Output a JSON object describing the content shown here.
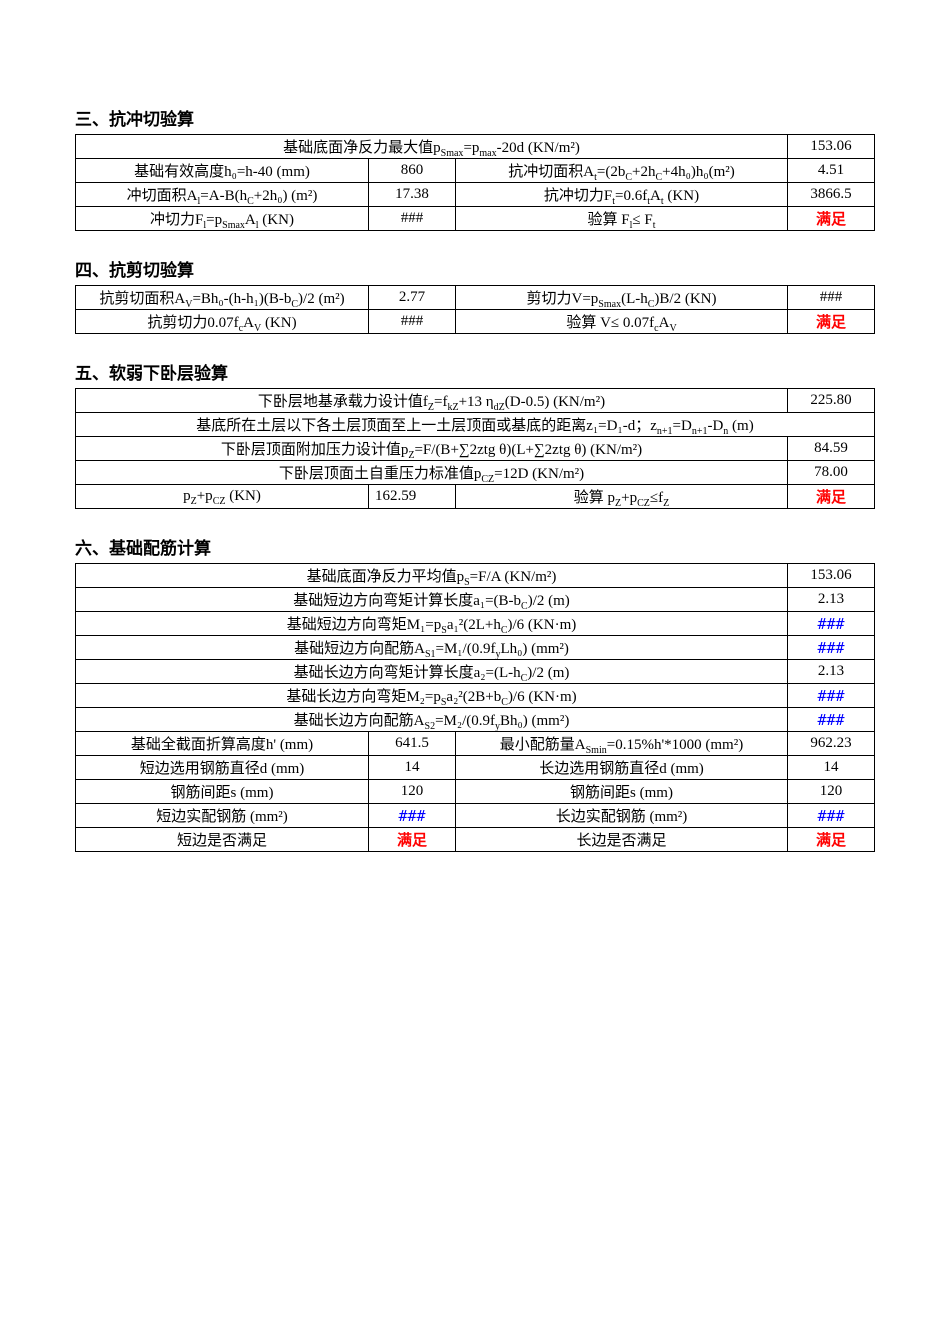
{
  "sections": {
    "s3": {
      "title": "三、抗冲切验算",
      "r1c1": "基础底面净反力最大值p",
      "r1c1_sub": "Smax",
      "r1c1_mid": "=p",
      "r1c1_sub2": "max",
      "r1c1_end": "-20d (KN/m²)",
      "r1v": "153.06",
      "r2c1": "基础有效高度h₀=h-40 (mm)",
      "r2v1": "860",
      "r2c2": "抗冲切面积A",
      "r2c2_sub": "t",
      "r2c2_mid": "=(2b",
      "r2c2_sub2": "C",
      "r2c2_mid2": "+2h",
      "r2c2_sub3": "C",
      "r2c2_mid3": "+4h₀)h₀(m²)",
      "r2v2": "4.51",
      "r3c1": "冲切面积A",
      "r3c1_sub": "l",
      "r3c1_mid": "=A-B(h",
      "r3c1_sub2": "C",
      "r3c1_end": "+2h₀) (m²)",
      "r3v1": "17.38",
      "r3c2": "抗冲切力F",
      "r3c2_sub": "t",
      "r3c2_mid": "=0.6f",
      "r3c2_sub2": "t",
      "r3c2_mid2": "A",
      "r3c2_sub3": "t",
      "r3c2_end": " (KN)",
      "r3v2": "3866.5",
      "r4c1": "冲切力F",
      "r4c1_sub": "l",
      "r4c1_mid": "=p",
      "r4c1_sub2": "Smax",
      "r4c1_mid2": "A",
      "r4c1_sub3": "l",
      "r4c1_end": " (KN)",
      "r4v1": "###",
      "r4c2": "验算  F",
      "r4c2_sub": "l",
      "r4c2_mid": "≤ F",
      "r4c2_sub2": "t",
      "r4v2": "满足"
    },
    "s4": {
      "title": "四、抗剪切验算",
      "r1c1a": "抗剪切面积A",
      "r1c1sub": "V",
      "r1c1b": "=Bh₀-(h-h₁)(B-b",
      "r1c1subC": "C",
      "r1c1c": ")/2 (m²)",
      "r1v1": "2.77",
      "r1c2a": "剪切力V=p",
      "r1c2sub": "Smax",
      "r1c2b": "(L-h",
      "r1c2subC": "C",
      "r1c2c": ")B/2 (KN)",
      "r1v2": "###",
      "r2c1a": "抗剪切力0.07f",
      "r2c1sub": "c",
      "r2c1b": "A",
      "r2c1subV": "V",
      "r2c1c": " (KN)",
      "r2v1": "###",
      "r2c2a": "验算   V≤ 0.07f",
      "r2c2sub": "c",
      "r2c2b": "A",
      "r2c2subV": "V",
      "r2v2": "满足"
    },
    "s5": {
      "title": "五、软弱下卧层验算",
      "r1a": "下卧层地基承载力设计值f",
      "r1sub": "Z",
      "r1b": "=f",
      "r1sub2": "kZ",
      "r1c": "+13 η",
      "r1sub3": "dZ",
      "r1d": "(D-0.5) (KN/m²)",
      "r1v": "225.80",
      "r2a": "基底所在土层以下各土层顶面至上一土层顶面或基底的距离z₁=D₁-d；z",
      "r2sub": "n+1",
      "r2b": "=D",
      "r2sub2": "n+1",
      "r2c": "-D",
      "r2sub3": "n",
      "r2d": " (m)",
      "r3": "下卧层顶面附加压力设计值p",
      "r3sub": "Z",
      "r3b": "=F/(B+∑2ztg θ)(L+∑2ztg θ) (KN/m²)",
      "r3v": "84.59",
      "r4": "下卧层顶面土自重压力标准值p",
      "r4sub": "CZ",
      "r4b": "=12D (KN/m²)",
      "r4v": "78.00",
      "r5c1a": "p",
      "r5c1sub": "Z",
      "r5c1b": "+p",
      "r5c1sub2": "CZ",
      "r5c1c": " (KN)",
      "r5v1": "162.59",
      "r5c2a": "验算   p",
      "r5c2sub": "Z",
      "r5c2b": "+p",
      "r5c2sub2": "CZ",
      "r5c2c": "≤f",
      "r5c2sub3": "Z",
      "r5v2": "满足"
    },
    "s6": {
      "title": "六、基础配筋计算",
      "rows": [
        {
          "label": "基础底面净反力平均值p",
          "sub": "S",
          "label2": "=F/A (KN/m²)",
          "span": 3,
          "val": "153.06"
        },
        {
          "label": "基础短边方向弯矩计算长度a₁=(B-b",
          "sub": "C",
          "label2": ")/2 (m)",
          "span": 3,
          "val": "2.13"
        },
        {
          "label": "基础短边方向弯矩M₁=p",
          "sub": "S",
          "label2": "a₁²(2L+h",
          "sub2": "C",
          "label3": ")/6 (KN·m)",
          "span": 3,
          "val": "###",
          "hash": true
        },
        {
          "label": "基础短边方向配筋A",
          "sub": "S1",
          "label2": "=M₁/(0.9f",
          "sub2": "y",
          "label3": "Lh₀) (mm²)",
          "span": 3,
          "val": "###",
          "hash": true
        },
        {
          "label": "基础长边方向弯矩计算长度a₂=(L-h",
          "sub": "C",
          "label2": ")/2 (m)",
          "span": 3,
          "val": "2.13"
        },
        {
          "label": "基础长边方向弯矩M₂=p",
          "sub": "S",
          "label2": "a₂²(2B+b",
          "sub2": "C",
          "label3": ")/6 (KN·m)",
          "span": 3,
          "val": "###",
          "hash": true
        },
        {
          "label": "基础长边方向配筋A",
          "sub": "S2",
          "label2": "=M₂/(0.9f",
          "sub2": "y",
          "label3": "Bh₀) (mm²)",
          "span": 3,
          "val": "###",
          "hash": true
        }
      ],
      "fr1c1": "基础全截面折算高度h' (mm)",
      "fr1v1": "641.5",
      "fr1c2a": "最小配筋量A",
      "fr1c2sub": "Smin",
      "fr1c2b": "=0.15%h'*1000 (mm²)",
      "fr1v2": "962.23",
      "fr2c1": "短边选用钢筋直径d (mm)",
      "fr2v1": "14",
      "fr2c2": "长边选用钢筋直径d (mm)",
      "fr2v2": "14",
      "fr3c1": "钢筋间距s (mm)",
      "fr3v1": "120",
      "fr3c2": "钢筋间距s (mm)",
      "fr3v2": "120",
      "fr4c1": "短边实配钢筋  (mm²)",
      "fr4v1": "###",
      "fr4c2": "长边实配钢筋  (mm²)",
      "fr4v2": "###",
      "fr5c1": "短边是否满足",
      "fr5v1": "满足",
      "fr5c2": "长边是否满足",
      "fr5v2": "满足"
    }
  }
}
